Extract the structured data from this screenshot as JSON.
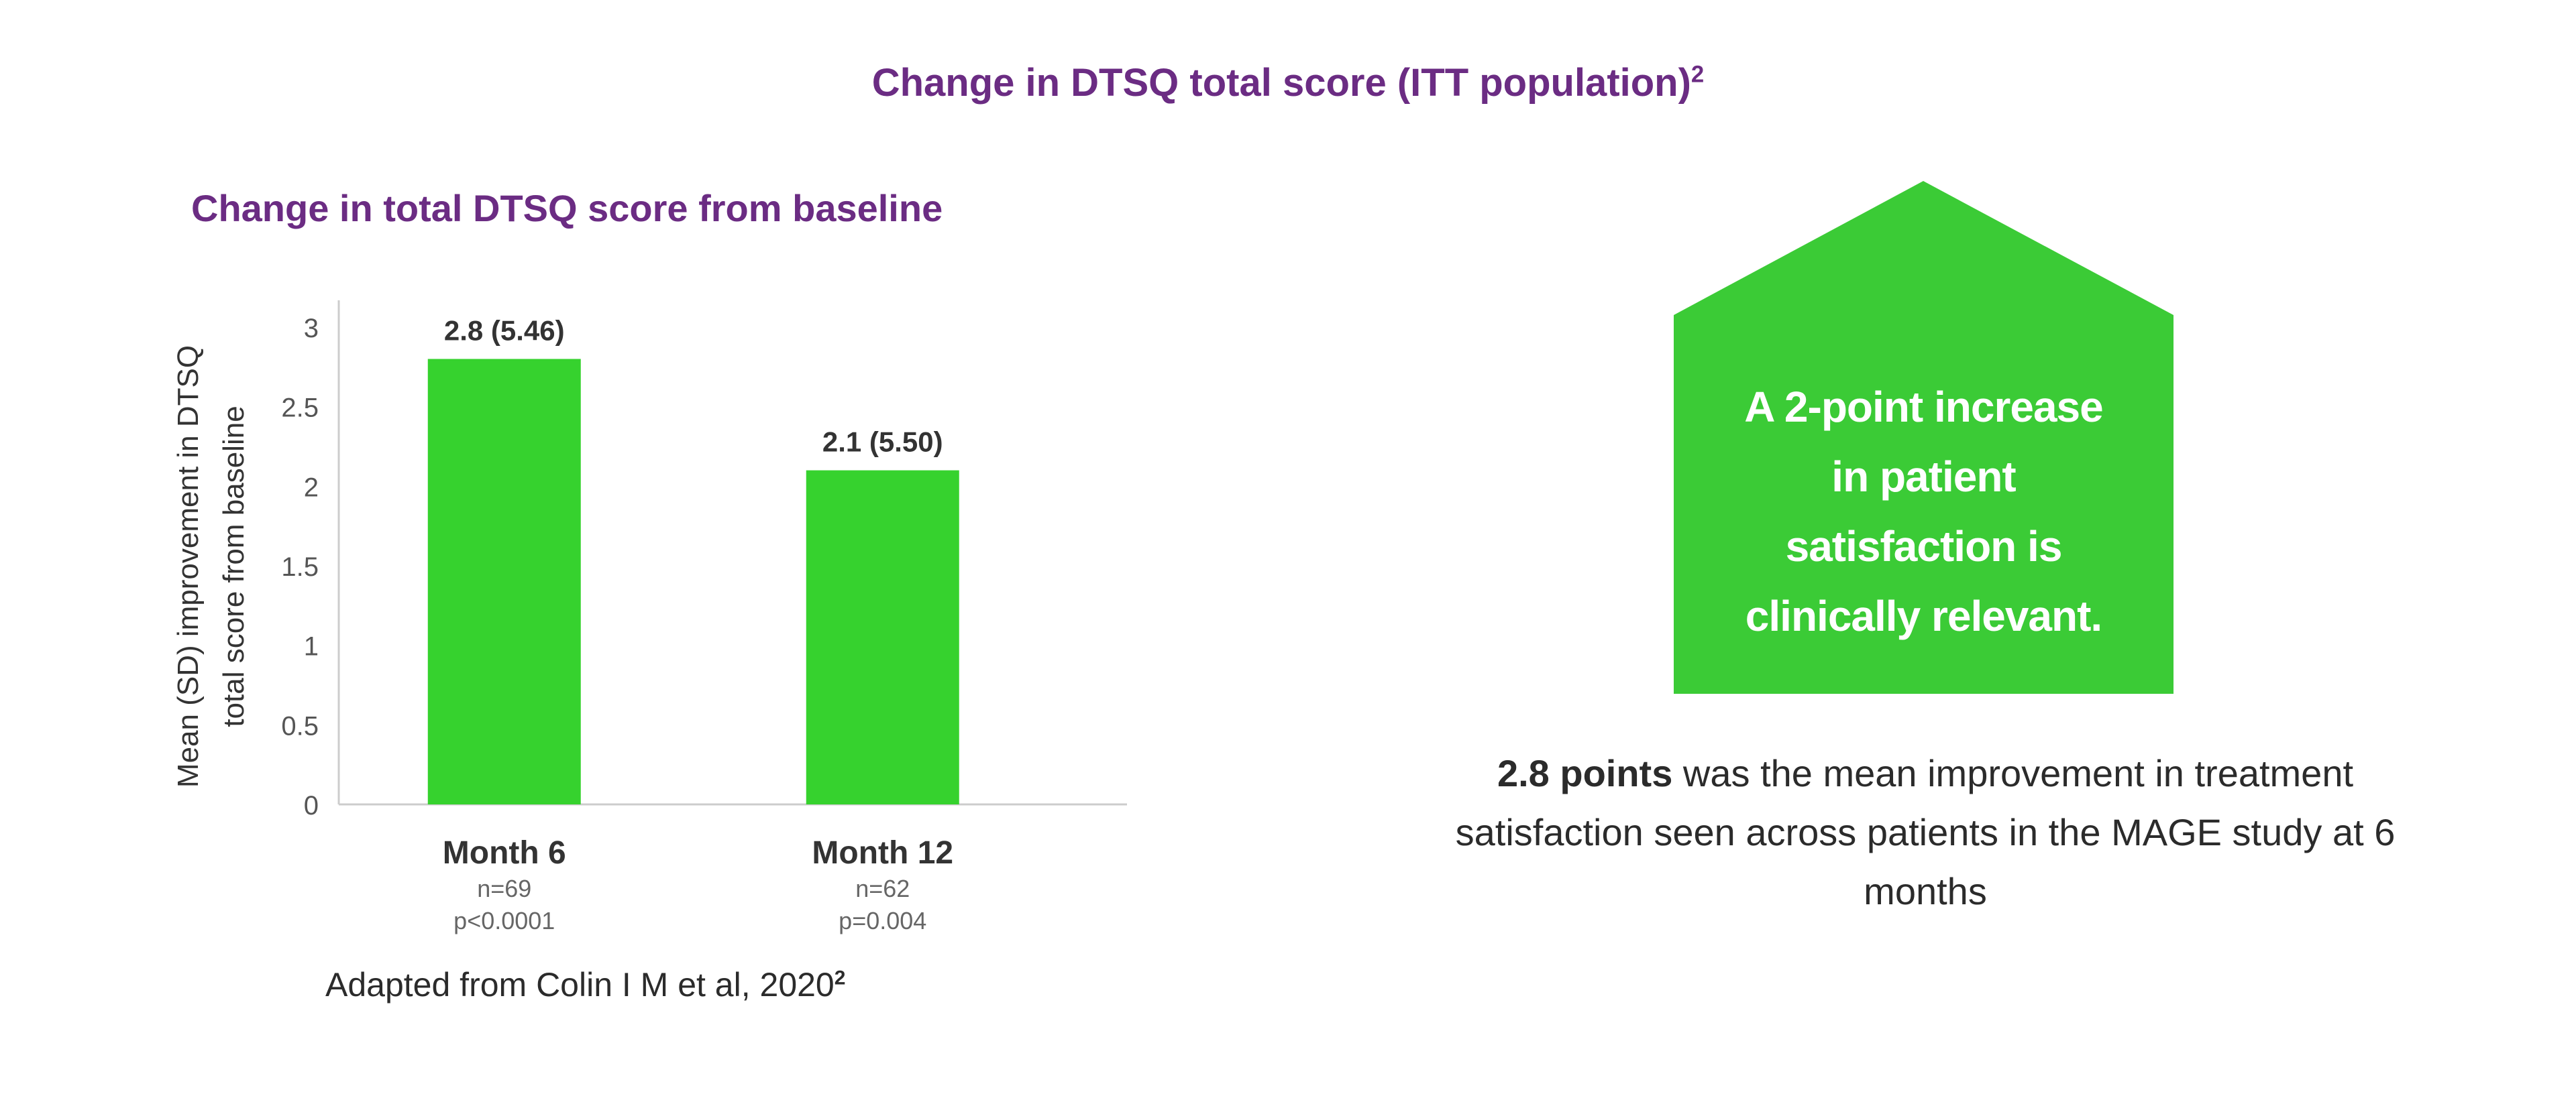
{
  "title": {
    "text": "Change in DTSQ total score (ITT population)",
    "sup": "2"
  },
  "chart_data": {
    "type": "bar",
    "title": "Change in total DTSQ score from baseline",
    "ylabel_lines": [
      "Mean (SD) improvement in DTSQ",
      "total score from baseline"
    ],
    "xlabel": "",
    "ylim": [
      0,
      3
    ],
    "yticks": [
      "0",
      "0.5",
      "1",
      "1.5",
      "2",
      "2.5",
      "3"
    ],
    "categories": [
      "Month 6",
      "Month 12"
    ],
    "values": [
      2.8,
      2.1
    ],
    "data_labels": [
      "2.8 (5.46)",
      "2.1 (5.50)"
    ],
    "n_labels": [
      "n=69",
      "n=62"
    ],
    "p_labels": [
      "p<0.0001",
      "p=0.004"
    ],
    "bar_color": "#36d22e",
    "grid": false
  },
  "source": {
    "text": "Adapted from Colin I M et al, 2020",
    "sup": "2"
  },
  "callout": {
    "lines": [
      "A 2-point increase",
      "in patient",
      "satisfaction is",
      "clinically relevant."
    ],
    "color": "#3bcb36"
  },
  "summary": {
    "highlight": "2.8 points",
    "rest": " was the mean improvement in treatment satisfaction seen across patients in the MAGE study at 6 months"
  }
}
